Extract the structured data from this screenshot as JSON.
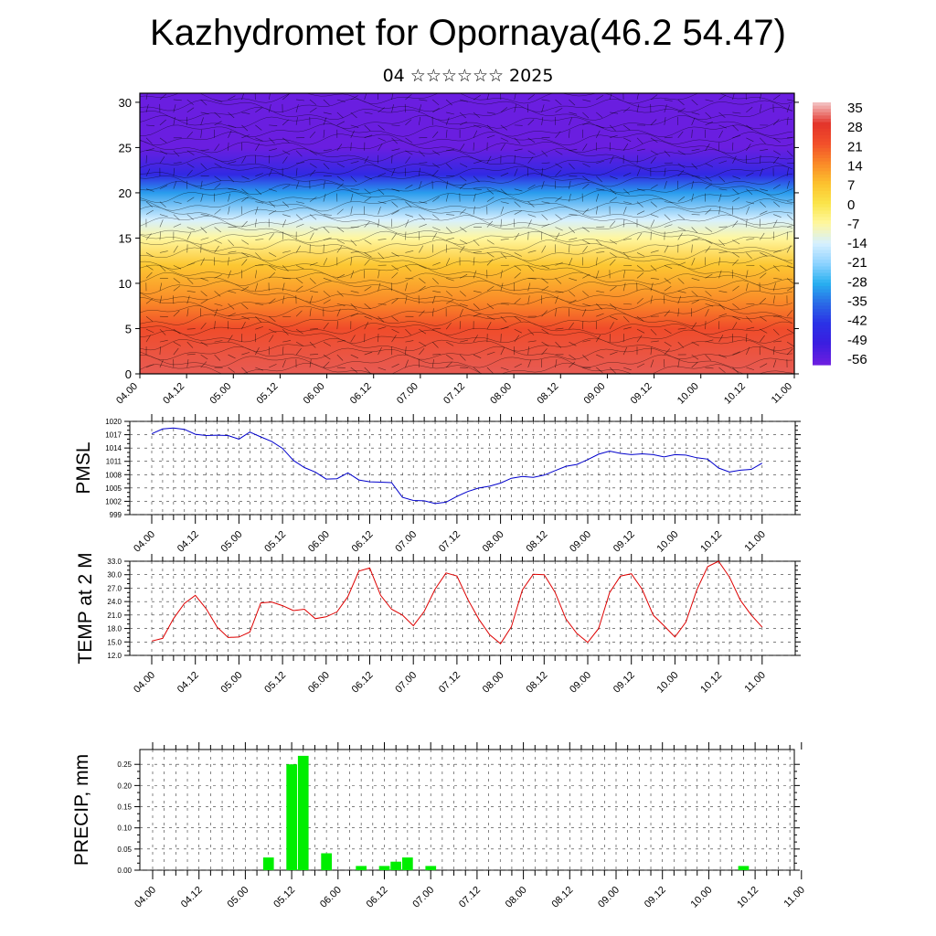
{
  "header": {
    "title": "Kazhydromet for Opornaya(46.2 54.47)",
    "subtitle": "04 ☆☆☆☆☆☆ 2025"
  },
  "colors": {
    "pmsl_line": "#0000cc",
    "temp_line": "#dd0000",
    "precip_bar": "#00ee00",
    "contour": "#000000",
    "grid": "#333333"
  },
  "chart_data": [
    {
      "type": "heatmap",
      "title": "",
      "ylabel": "",
      "ylim": [
        0,
        31
      ],
      "y_ticks": [
        0,
        5,
        10,
        15,
        20,
        25,
        30
      ],
      "x_tick_labels": [
        "04.00",
        "04.12",
        "05.00",
        "05.12",
        "06.00",
        "06.12",
        "07.00",
        "07.12",
        "08.00",
        "08.12",
        "09.00",
        "09.12",
        "10.00",
        "10.12",
        "11.00"
      ],
      "colorbar": {
        "labels": [
          "35",
          "28",
          "21",
          "14",
          "7",
          "0",
          "-7",
          "-14",
          "-21",
          "-28",
          "-35",
          "-42",
          "-49",
          "-56"
        ],
        "colors": [
          "#f2bcbc",
          "#e3342a",
          "#f2502a",
          "#fa8a28",
          "#fcc22e",
          "#fbe54a",
          "#fff7a0",
          "#d6f0ff",
          "#8fd3ff",
          "#28b0f0",
          "#2a6be6",
          "#2b32e6",
          "#3a1ee0",
          "#6a1ee0"
        ]
      },
      "temperature_profile": [
        {
          "height": 0,
          "temp": 30
        },
        {
          "height": 5,
          "temp": 22
        },
        {
          "height": 8,
          "temp": 14
        },
        {
          "height": 12,
          "temp": 6
        },
        {
          "height": 15,
          "temp": -7
        },
        {
          "height": 17,
          "temp": -14
        },
        {
          "height": 20,
          "temp": -30
        },
        {
          "height": 22,
          "temp": -45
        },
        {
          "height": 25,
          "temp": -56
        },
        {
          "height": 28,
          "temp": -60
        },
        {
          "height": 31,
          "temp": -62
        }
      ]
    },
    {
      "type": "line",
      "title": "",
      "ylabel": "PMSL",
      "ylim": [
        999,
        1020
      ],
      "y_ticks": [
        999,
        1002,
        1005,
        1008,
        1011,
        1014,
        1017,
        1020
      ],
      "x_tick_labels": [
        "04.00",
        "04.12",
        "05.00",
        "05.12",
        "06.00",
        "06.12",
        "07.00",
        "07.12",
        "08.00",
        "08.12",
        "09.00",
        "09.12",
        "10.00",
        "10.12",
        "11.00"
      ],
      "x_step_hours": 3,
      "series": [
        {
          "values": [
            1017.2,
            1018.3,
            1018.5,
            1018.2,
            1017.1,
            1016.8,
            1016.9,
            1016.8,
            1016.0,
            1017.6,
            1016.5,
            1015.5,
            1013.9,
            1011.2,
            1009.6,
            1008.6,
            1007.0,
            1007.1,
            1008.4,
            1006.8,
            1006.4,
            1006.3,
            1006.2,
            1002.9,
            1002.2,
            1002.1,
            1001.5,
            1001.8,
            1003.1,
            1004.2,
            1005.0,
            1005.4,
            1006.1,
            1007.2,
            1007.6,
            1007.4,
            1007.9,
            1008.9,
            1009.9,
            1010.3,
            1011.4,
            1012.6,
            1013.3,
            1012.8,
            1012.5,
            1012.7,
            1012.5,
            1012.0,
            1012.5,
            1012.4,
            1011.8,
            1011.5,
            1009.5,
            1008.6,
            1009.0,
            1009.2,
            1010.6
          ]
        }
      ]
    },
    {
      "type": "line",
      "title": "",
      "ylabel": "TEMP at 2 M",
      "ylim": [
        12,
        33
      ],
      "y_ticks": [
        "12.0",
        "15.0",
        "18.0",
        "21.0",
        "24.0",
        "27.0",
        "30.0",
        "33.0"
      ],
      "x_tick_labels": [
        "04.00",
        "04.12",
        "05.00",
        "05.12",
        "06.00",
        "06.12",
        "07.00",
        "07.12",
        "08.00",
        "08.12",
        "09.00",
        "09.12",
        "10.00",
        "10.12",
        "11.00"
      ],
      "x_step_hours": 3,
      "series": [
        {
          "values": [
            15.2,
            15.8,
            20.2,
            23.6,
            25.4,
            22.4,
            18.3,
            16.0,
            16.1,
            17.2,
            23.7,
            23.9,
            23.1,
            22.0,
            22.3,
            20.2,
            20.6,
            21.7,
            25.1,
            30.8,
            31.5,
            25.4,
            22.3,
            21.0,
            18.6,
            21.8,
            26.8,
            30.4,
            29.7,
            24.5,
            20.1,
            16.6,
            14.6,
            18.4,
            26.6,
            30.1,
            30.0,
            26.1,
            20.1,
            16.9,
            14.9,
            18.0,
            26.0,
            29.7,
            30.2,
            26.7,
            21.0,
            18.6,
            16.1,
            19.4,
            26.6,
            31.8,
            33.0,
            29.5,
            24.3,
            21.0,
            18.3
          ]
        }
      ]
    },
    {
      "type": "bar",
      "title": "",
      "ylabel": "PRECIP, mm",
      "ylim": [
        0,
        0.285
      ],
      "y_ticks": [
        "0.00",
        "0.05",
        "0.10",
        "0.15",
        "0.20",
        "0.25"
      ],
      "x_tick_labels": [
        "04.00",
        "04.12",
        "05.00",
        "05.12",
        "06.00",
        "06.12",
        "07.00",
        "07.12",
        "08.00",
        "08.12",
        "09.00",
        "09.12",
        "10.00",
        "10.12",
        "11.00"
      ],
      "x_step_hours": 3,
      "bars": [
        {
          "index": 10,
          "value": 0.03
        },
        {
          "index": 12,
          "value": 0.25
        },
        {
          "index": 13,
          "value": 0.27
        },
        {
          "index": 15,
          "value": 0.04
        },
        {
          "index": 18,
          "value": 0.01
        },
        {
          "index": 20,
          "value": 0.01
        },
        {
          "index": 21,
          "value": 0.02
        },
        {
          "index": 22,
          "value": 0.03
        },
        {
          "index": 24,
          "value": 0.01
        },
        {
          "index": 51,
          "value": 0.01
        }
      ]
    }
  ]
}
